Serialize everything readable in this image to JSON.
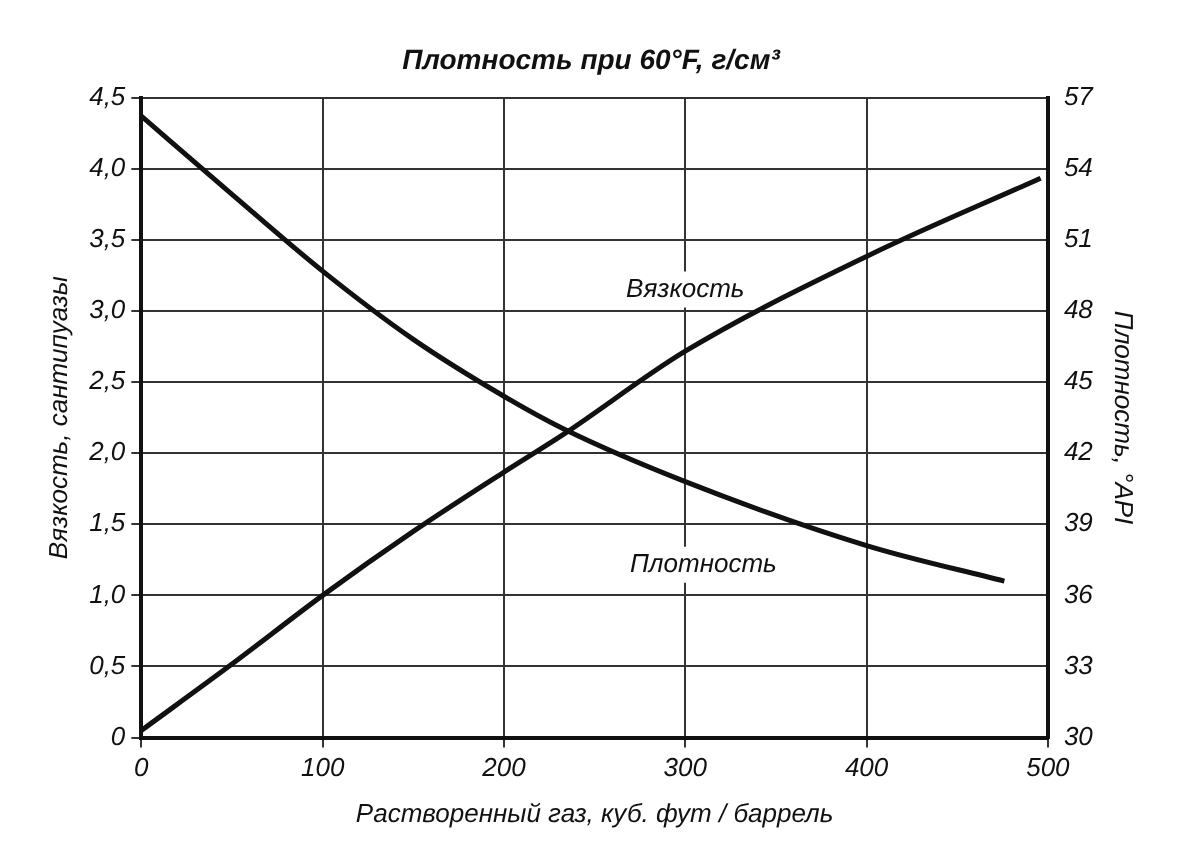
{
  "chart_data": {
    "type": "line",
    "title": "Плотность при 60°F, г/см³",
    "xlabel": "Растворенный газ, куб. фут / баррель",
    "ylabel": "Вязкость, сантипуазы",
    "y2label": "Плотность, °API",
    "series": [
      {
        "color": "#111111",
        "x": [
          0,
          50,
          100,
          150,
          200,
          233,
          300,
          400,
          476
        ],
        "values": [
          4.37,
          3.82,
          3.28,
          2.8,
          2.4,
          2.17,
          1.8,
          1.35,
          1.1
        ]
      },
      {
        "color": "#111111",
        "axis": "y2",
        "x": [
          0,
          50,
          100,
          150,
          200,
          233,
          300,
          400,
          496
        ],
        "values": [
          30.3,
          33.1,
          36.0,
          38.7,
          41.2,
          42.8,
          46.3,
          50.3,
          53.6
        ]
      }
    ],
    "annotations": [
      "Вязкость",
      "Плотность"
    ],
    "xlim": [
      0,
      500
    ],
    "xticks": [
      0,
      100,
      200,
      300,
      400,
      500
    ],
    "ylim": [
      0,
      4.5
    ],
    "yticks": [
      {
        "value": 0,
        "label": "0"
      },
      {
        "value": 0.5,
        "label": "0,5"
      },
      {
        "value": 1,
        "label": "1,0"
      },
      {
        "value": 1.5,
        "label": "1,5"
      },
      {
        "value": 2,
        "label": "2,0"
      },
      {
        "value": 2.5,
        "label": "2,5"
      },
      {
        "value": 3,
        "label": "3,0"
      },
      {
        "value": 3.5,
        "label": "3,5"
      },
      {
        "value": 4,
        "label": "4,0"
      },
      {
        "value": 4.5,
        "label": "4,5"
      }
    ],
    "y2lim": [
      30,
      57
    ],
    "y2ticks": [
      30,
      33,
      36,
      39,
      42,
      45,
      48,
      51,
      54,
      57
    ],
    "grid": true,
    "legend": false,
    "marker": "none",
    "line_style": "solid"
  }
}
